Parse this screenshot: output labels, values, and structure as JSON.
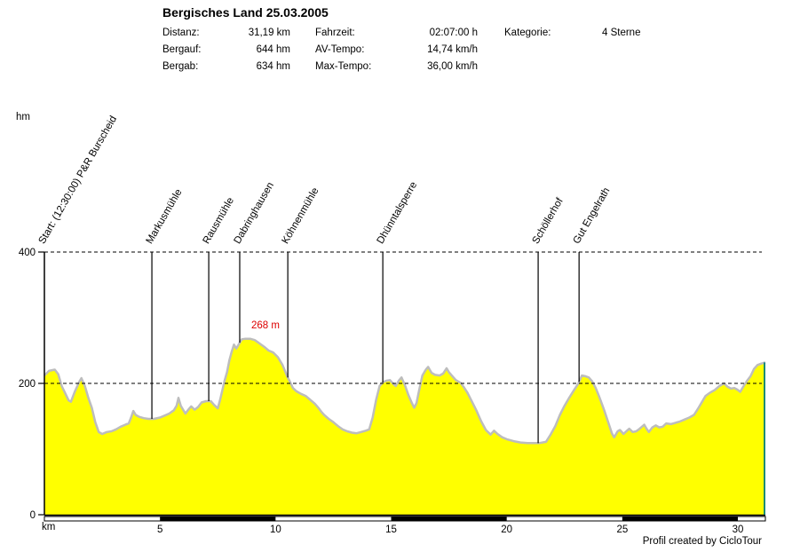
{
  "header": {
    "title": "Bergisches Land 25.03.2005",
    "stats": {
      "col1": [
        {
          "label": "Distanz:",
          "value": "31,19 km"
        },
        {
          "label": "Bergauf:",
          "value": "644 hm"
        },
        {
          "label": "Bergab:",
          "value": "634 hm"
        }
      ],
      "col2": [
        {
          "label": "Fahrzeit:",
          "value": "02:07:00 h"
        },
        {
          "label": "AV-Tempo:",
          "value": "14,74 km/h"
        },
        {
          "label": "Max-Tempo:",
          "value": "36,00 km/h"
        }
      ],
      "col3": [
        {
          "label": "Kategorie:",
          "value": "4 Sterne"
        }
      ]
    }
  },
  "footer": {
    "credit": "Profil created by CicloTour"
  },
  "chart_data": {
    "type": "area",
    "title": "Bergisches Land 25.03.2005",
    "xlabel": "km",
    "ylabel": "hm",
    "xlim": [
      0,
      31.19
    ],
    "ylim": [
      0,
      400
    ],
    "xticks": [
      5,
      10,
      15,
      20,
      25,
      30
    ],
    "yticks": [
      0,
      200,
      400
    ],
    "grid_dashed_at": [
      200,
      400
    ],
    "legend": "none",
    "colors": {
      "fill": "#ffff00",
      "outline": "#bdbdbd",
      "right_border": "#008080",
      "annotation": "#dd0000",
      "axis": "#000000",
      "scalebar": [
        "#ffffff",
        "#000000"
      ]
    },
    "annotation": {
      "text": "268 m",
      "km": 8.95,
      "hm": 268
    },
    "scalebar_interval_km": 5,
    "waypoints": [
      {
        "label": "Start: (12:30:00) P&R Burscheid",
        "km": 0
      },
      {
        "label": "Markusmühle",
        "km": 4.65
      },
      {
        "label": "Rausmühle",
        "km": 7.11
      },
      {
        "label": "Dabringhausen",
        "km": 8.45
      },
      {
        "label": "Köhnenmühle",
        "km": 10.53
      },
      {
        "label": "Dhünntalsperre",
        "km": 14.64
      },
      {
        "label": "Schöllerhof",
        "km": 21.36
      },
      {
        "label": "Gut Engelrath",
        "km": 23.13
      }
    ],
    "series": [
      {
        "name": "elevation_profile_hm_vs_km",
        "points": [
          [
            0,
            212
          ],
          [
            0.2,
            219
          ],
          [
            0.45,
            221
          ],
          [
            0.6,
            214
          ],
          [
            0.75,
            196
          ],
          [
            0.9,
            185
          ],
          [
            1.05,
            174
          ],
          [
            1.15,
            172
          ],
          [
            1.3,
            186
          ],
          [
            1.5,
            202
          ],
          [
            1.6,
            208
          ],
          [
            1.75,
            196
          ],
          [
            1.9,
            178
          ],
          [
            2.05,
            163
          ],
          [
            2.2,
            141
          ],
          [
            2.35,
            126
          ],
          [
            2.5,
            123
          ],
          [
            2.7,
            126
          ],
          [
            2.9,
            127
          ],
          [
            3.1,
            130
          ],
          [
            3.3,
            134
          ],
          [
            3.5,
            137
          ],
          [
            3.65,
            139
          ],
          [
            3.75,
            148
          ],
          [
            3.85,
            158
          ],
          [
            3.95,
            152
          ],
          [
            4.1,
            149
          ],
          [
            4.3,
            147
          ],
          [
            4.5,
            146
          ],
          [
            4.74,
            146
          ],
          [
            5,
            148
          ],
          [
            5.2,
            151
          ],
          [
            5.4,
            154
          ],
          [
            5.6,
            159
          ],
          [
            5.72,
            166
          ],
          [
            5.8,
            178
          ],
          [
            5.9,
            166
          ],
          [
            6,
            160
          ],
          [
            6.1,
            154
          ],
          [
            6.25,
            161
          ],
          [
            6.35,
            165
          ],
          [
            6.5,
            160
          ],
          [
            6.65,
            164
          ],
          [
            6.8,
            171
          ],
          [
            7,
            173
          ],
          [
            7.2,
            173
          ],
          [
            7.35,
            167
          ],
          [
            7.5,
            162
          ],
          [
            7.6,
            175
          ],
          [
            7.7,
            190
          ],
          [
            7.8,
            205
          ],
          [
            7.9,
            217
          ],
          [
            8,
            235
          ],
          [
            8.1,
            248
          ],
          [
            8.2,
            259
          ],
          [
            8.3,
            253
          ],
          [
            8.45,
            262
          ],
          [
            8.54,
            267
          ],
          [
            8.7,
            268
          ],
          [
            8.9,
            268
          ],
          [
            9.1,
            266
          ],
          [
            9.3,
            261
          ],
          [
            9.5,
            256
          ],
          [
            9.7,
            250
          ],
          [
            9.9,
            247
          ],
          [
            10.1,
            240
          ],
          [
            10.3,
            228
          ],
          [
            10.5,
            211
          ],
          [
            10.6,
            204
          ],
          [
            10.75,
            193
          ],
          [
            10.9,
            188
          ],
          [
            11.1,
            184
          ],
          [
            11.3,
            181
          ],
          [
            11.5,
            175
          ],
          [
            11.7,
            169
          ],
          [
            11.85,
            163
          ],
          [
            12,
            156
          ],
          [
            12.1,
            152
          ],
          [
            12.3,
            146
          ],
          [
            12.5,
            141
          ],
          [
            12.7,
            135
          ],
          [
            12.9,
            130
          ],
          [
            13.1,
            127
          ],
          [
            13.3,
            125
          ],
          [
            13.5,
            124
          ],
          [
            13.7,
            126
          ],
          [
            13.9,
            128
          ],
          [
            14.05,
            130
          ],
          [
            14.2,
            148
          ],
          [
            14.35,
            175
          ],
          [
            14.5,
            196
          ],
          [
            14.65,
            202
          ],
          [
            14.8,
            204
          ],
          [
            14.95,
            205
          ],
          [
            15.1,
            199
          ],
          [
            15.2,
            196
          ],
          [
            15.35,
            205
          ],
          [
            15.45,
            209
          ],
          [
            15.6,
            197
          ],
          [
            15.75,
            182
          ],
          [
            15.9,
            170
          ],
          [
            16,
            163
          ],
          [
            16.1,
            170
          ],
          [
            16.2,
            188
          ],
          [
            16.35,
            212
          ],
          [
            16.5,
            221
          ],
          [
            16.6,
            225
          ],
          [
            16.75,
            216
          ],
          [
            16.9,
            213
          ],
          [
            17.1,
            212
          ],
          [
            17.25,
            215
          ],
          [
            17.4,
            223
          ],
          [
            17.5,
            217
          ],
          [
            17.65,
            211
          ],
          [
            17.8,
            205
          ],
          [
            18,
            201
          ],
          [
            18.15,
            194
          ],
          [
            18.3,
            186
          ],
          [
            18.5,
            172
          ],
          [
            18.7,
            158
          ],
          [
            18.9,
            142
          ],
          [
            19.1,
            129
          ],
          [
            19.3,
            122
          ],
          [
            19.45,
            128
          ],
          [
            19.6,
            123
          ],
          [
            19.8,
            118
          ],
          [
            20,
            115
          ],
          [
            20.3,
            112
          ],
          [
            20.6,
            110
          ],
          [
            20.9,
            109
          ],
          [
            21.2,
            109
          ],
          [
            21.4,
            109
          ],
          [
            21.7,
            111
          ],
          [
            21.9,
            122
          ],
          [
            22.1,
            135
          ],
          [
            22.3,
            152
          ],
          [
            22.5,
            166
          ],
          [
            22.7,
            178
          ],
          [
            22.9,
            189
          ],
          [
            23.1,
            200
          ],
          [
            23.25,
            212
          ],
          [
            23.4,
            211
          ],
          [
            23.55,
            209
          ],
          [
            23.7,
            203
          ],
          [
            23.85,
            193
          ],
          [
            24,
            180
          ],
          [
            24.2,
            161
          ],
          [
            24.4,
            140
          ],
          [
            24.55,
            124
          ],
          [
            24.65,
            118
          ],
          [
            24.8,
            127
          ],
          [
            24.9,
            129
          ],
          [
            25.05,
            123
          ],
          [
            25.2,
            128
          ],
          [
            25.3,
            131
          ],
          [
            25.45,
            126
          ],
          [
            25.6,
            127
          ],
          [
            25.75,
            131
          ],
          [
            25.95,
            137
          ],
          [
            26.05,
            131
          ],
          [
            26.15,
            126
          ],
          [
            26.3,
            133
          ],
          [
            26.45,
            136
          ],
          [
            26.6,
            133
          ],
          [
            26.75,
            134
          ],
          [
            26.9,
            139
          ],
          [
            27.1,
            138
          ],
          [
            27.3,
            140
          ],
          [
            27.5,
            142
          ],
          [
            27.7,
            145
          ],
          [
            27.9,
            148
          ],
          [
            28.1,
            152
          ],
          [
            28.3,
            163
          ],
          [
            28.45,
            172
          ],
          [
            28.6,
            181
          ],
          [
            28.8,
            186
          ],
          [
            29,
            190
          ],
          [
            29.2,
            196
          ],
          [
            29.4,
            200
          ],
          [
            29.55,
            195
          ],
          [
            29.7,
            192
          ],
          [
            29.85,
            193
          ],
          [
            30,
            190
          ],
          [
            30.1,
            187
          ],
          [
            30.25,
            196
          ],
          [
            30.4,
            204
          ],
          [
            30.55,
            211
          ],
          [
            30.7,
            222
          ],
          [
            30.85,
            228
          ],
          [
            31,
            230
          ],
          [
            31.19,
            232
          ]
        ]
      }
    ]
  }
}
